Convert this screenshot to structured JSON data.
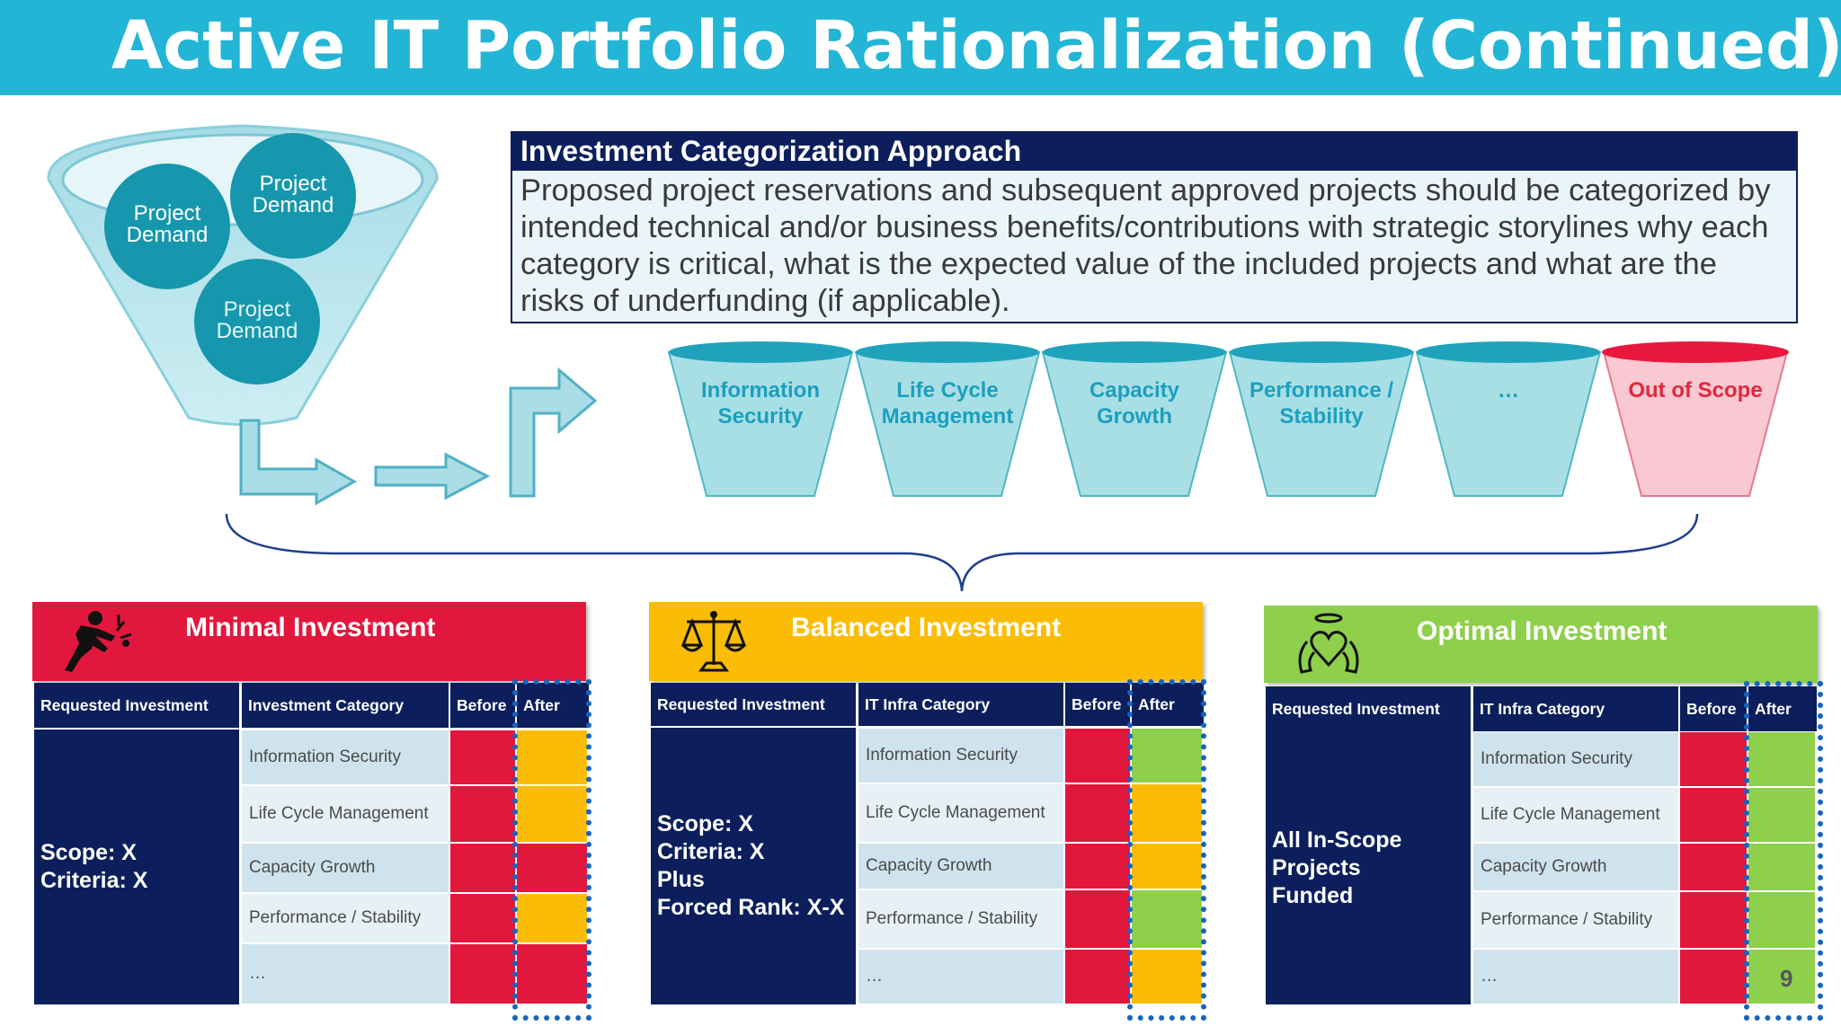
{
  "title": "Active IT Portfolio Rationalization (Continued)",
  "colors": {
    "title_bar": "#22b5d6",
    "navy": "#0c1f5c",
    "red": "#e2173d",
    "yellow": "#fbbc05",
    "green": "#8ecf4c",
    "teal": "#1c9fbf"
  },
  "funnel": {
    "circles": [
      "Project\nDemand",
      "Project\nDemand",
      "Project\nDemand"
    ]
  },
  "approach": {
    "title": "Investment Categorization Approach",
    "body": "Proposed project reservations and subsequent approved projects should be categorized by intended technical and/or business benefits/contributions with strategic storylines why each category is critical, what is the expected value of the included projects and what are the risks of underfunding (if applicable)."
  },
  "buckets": [
    {
      "label": "Information\nSecurity",
      "icon": "bucket-teal"
    },
    {
      "label": "Life Cycle\nManagement",
      "icon": "bucket-teal"
    },
    {
      "label": "Capacity\nGrowth",
      "icon": "bucket-teal"
    },
    {
      "label": "Performance /\nStability",
      "icon": "bucket-teal"
    },
    {
      "label": "…",
      "icon": "bucket-teal"
    },
    {
      "label": "Out of Scope",
      "icon": "bucket-red"
    }
  ],
  "panels": [
    {
      "title": "Minimal Investment",
      "icon": "kick-figure-icon",
      "headers": [
        "Requested Investment",
        "Investment Category",
        "Before",
        "After"
      ],
      "requested": "Scope: X\nCriteria: X",
      "rows": [
        {
          "category": "Information Security",
          "before": "red",
          "after": "yellow"
        },
        {
          "category": "Life Cycle Management",
          "before": "red",
          "after": "yellow"
        },
        {
          "category": "Capacity Growth",
          "before": "red",
          "after": "red"
        },
        {
          "category": "Performance / Stability",
          "before": "red",
          "after": "yellow"
        },
        {
          "category": "…",
          "before": "red",
          "after": "red"
        }
      ]
    },
    {
      "title": "Balanced Investment",
      "icon": "scales-icon",
      "headers": [
        "Requested Investment",
        "IT Infra Category",
        "Before",
        "After"
      ],
      "requested": "Scope: X\nCriteria: X\nPlus\nForced Rank: X-X",
      "rows": [
        {
          "category": "Information Security",
          "before": "red",
          "after": "green"
        },
        {
          "category": "Life Cycle Management",
          "before": "red",
          "after": "yellow"
        },
        {
          "category": "Capacity Growth",
          "before": "red",
          "after": "yellow"
        },
        {
          "category": "Performance / Stability",
          "before": "red",
          "after": "green"
        },
        {
          "category": "…",
          "before": "red",
          "after": "yellow"
        }
      ]
    },
    {
      "title": "Optimal Investment",
      "icon": "angel-heart-icon",
      "headers": [
        "Requested Investment",
        "IT Infra Category",
        "Before",
        "After"
      ],
      "requested": "All In-Scope\nProjects\nFunded",
      "rows": [
        {
          "category": "Information Security",
          "before": "red",
          "after": "green"
        },
        {
          "category": "Life Cycle Management",
          "before": "red",
          "after": "green"
        },
        {
          "category": "Capacity Growth",
          "before": "red",
          "after": "green"
        },
        {
          "category": "Performance / Stability",
          "before": "red",
          "after": "green"
        },
        {
          "category": "…",
          "before": "red",
          "after": "green"
        }
      ],
      "footnote": "9"
    }
  ]
}
